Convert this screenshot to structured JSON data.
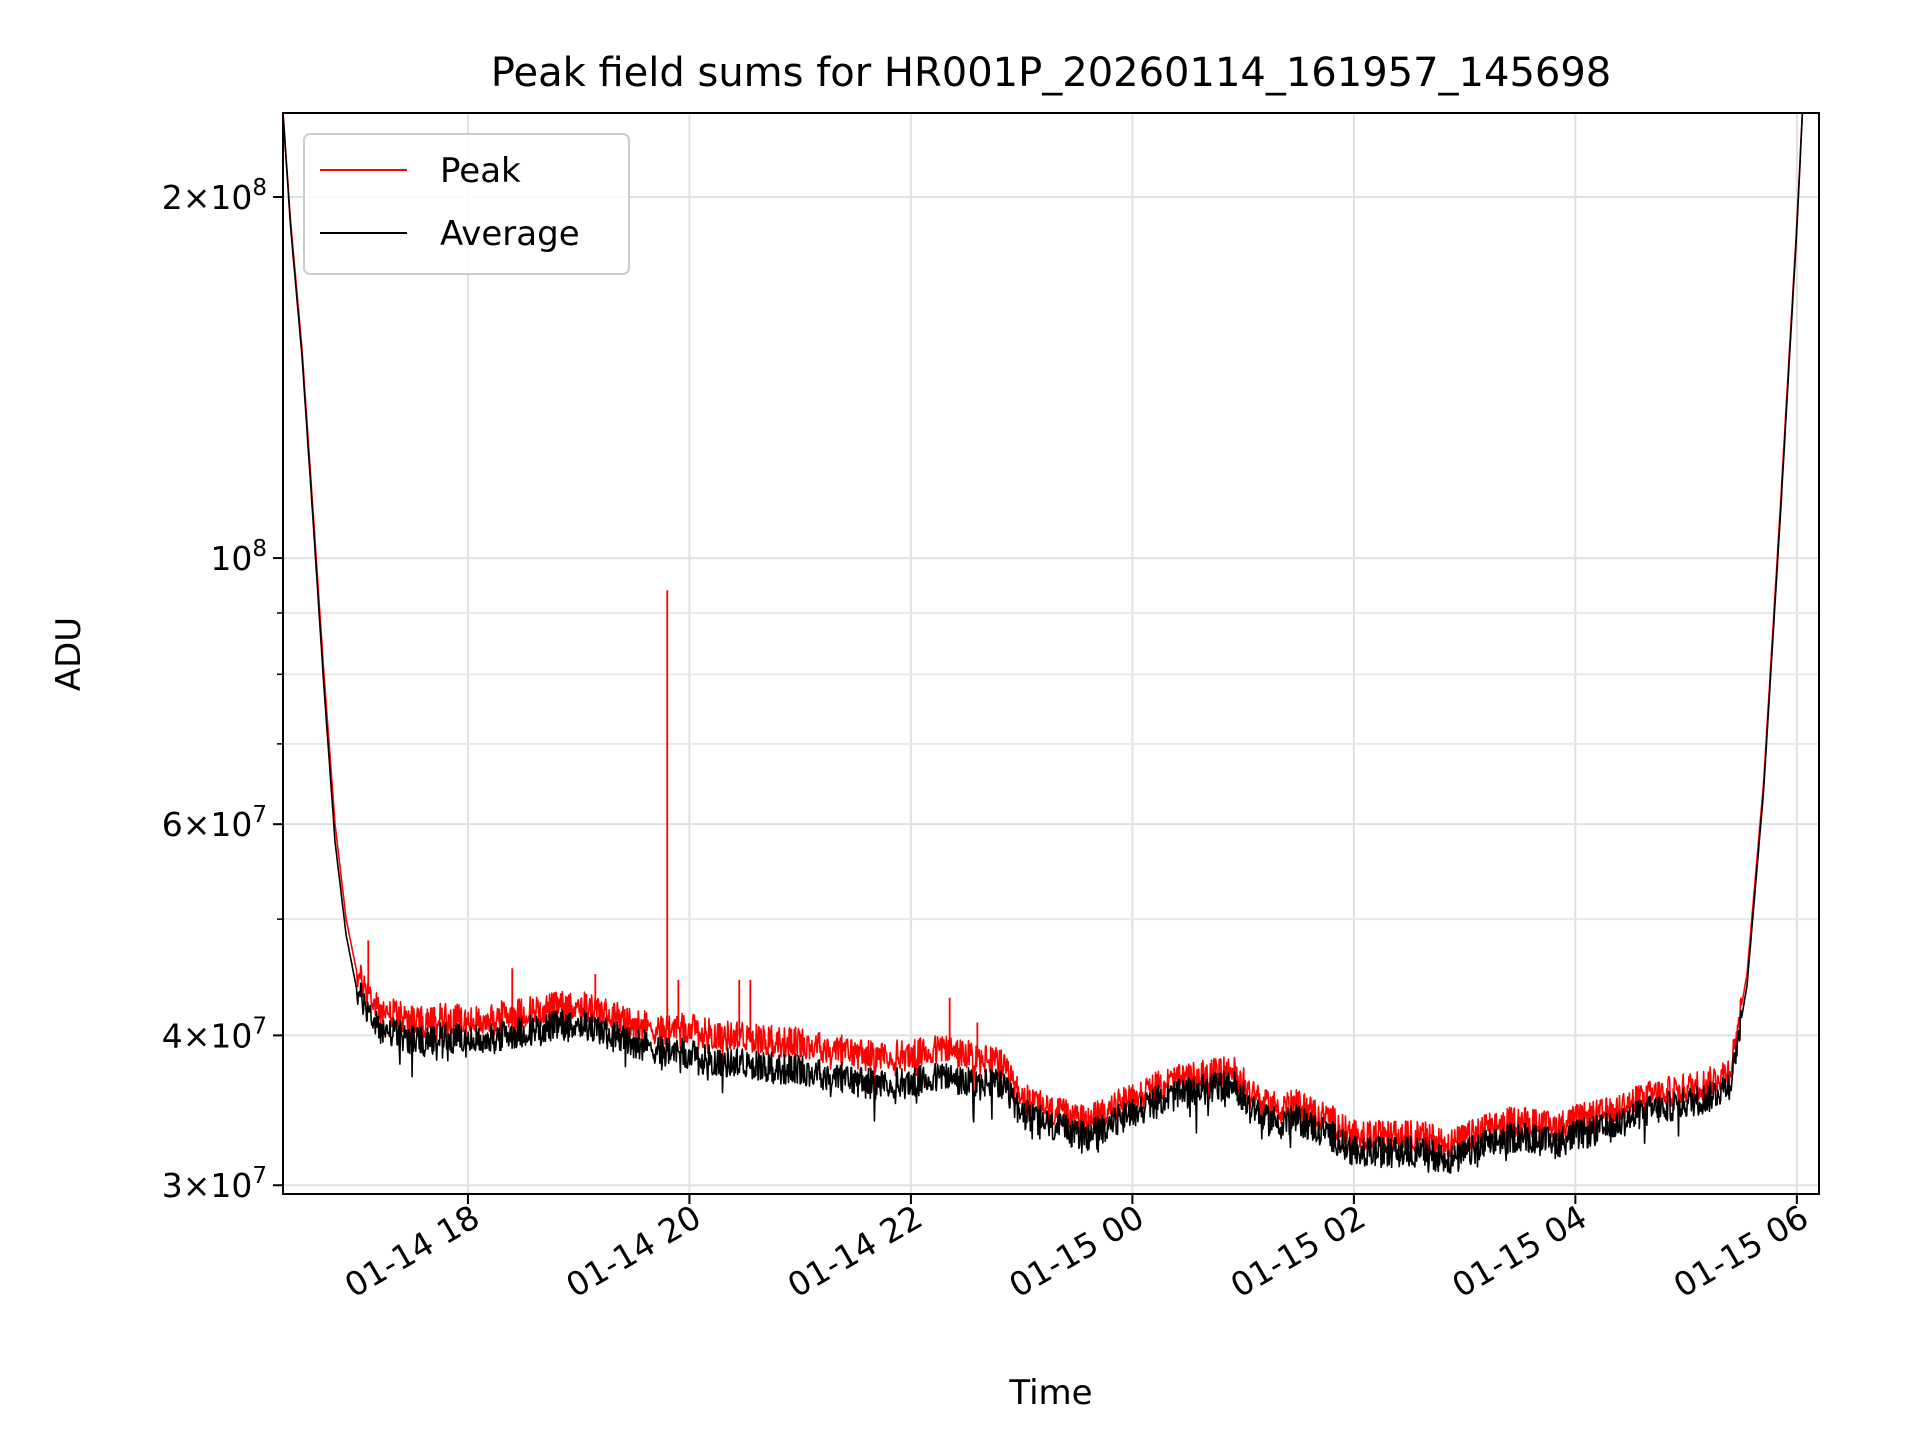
{
  "chart_data": {
    "type": "line",
    "title": "Peak field sums for HR001P_20260114_161957_145698",
    "xlabel": "Time",
    "ylabel": "ADU",
    "yscale": "log",
    "grid": true,
    "legend_position": "upper-left",
    "xlim_hours": [
      16.33,
      30.2
    ],
    "ylim": [
      29500000,
      235000000
    ],
    "x_ticks": [
      {
        "hours": 18,
        "label": "01-14 18"
      },
      {
        "hours": 20,
        "label": "01-14 20"
      },
      {
        "hours": 22,
        "label": "01-14 22"
      },
      {
        "hours": 24,
        "label": "01-15 00"
      },
      {
        "hours": 26,
        "label": "01-15 02"
      },
      {
        "hours": 28,
        "label": "01-15 04"
      },
      {
        "hours": 30,
        "label": "01-15 06"
      }
    ],
    "y_ticks": [
      {
        "value": 30000000,
        "mantissa": "3",
        "exponent": "7"
      },
      {
        "value": 40000000,
        "mantissa": "4",
        "exponent": "7"
      },
      {
        "value": 60000000,
        "mantissa": "6",
        "exponent": "7"
      },
      {
        "value": 100000000,
        "mantissa": "",
        "exponent": "8"
      },
      {
        "value": 200000000,
        "mantissa": "2",
        "exponent": "8"
      }
    ],
    "y_minor_ticks": [
      50000000,
      70000000,
      80000000,
      90000000
    ],
    "series": [
      {
        "name": "Peak",
        "color": "#ff0000",
        "x_hours": [
          16.33,
          16.4,
          16.5,
          16.6,
          16.7,
          16.8,
          16.9,
          17.0,
          17.2,
          17.4,
          17.6,
          17.8,
          18.0,
          18.3,
          18.6,
          19.0,
          19.3,
          19.5,
          19.7,
          20.0,
          20.3,
          20.5,
          20.8,
          21.0,
          21.3,
          21.6,
          22.0,
          22.3,
          22.5,
          22.8,
          23.0,
          23.3,
          23.6,
          24.0,
          24.3,
          24.6,
          24.9,
          25.2,
          25.5,
          25.8,
          26.0,
          26.3,
          26.6,
          26.9,
          27.2,
          27.5,
          27.8,
          28.0,
          28.3,
          28.6,
          28.9,
          29.2,
          29.4,
          29.55,
          29.7,
          29.85,
          30.0,
          30.05
        ],
        "values": [
          235000000,
          190000000,
          150000000,
          110000000,
          80000000,
          60000000,
          50000000,
          45000000,
          42000000,
          41500000,
          41000000,
          41500000,
          41000000,
          41500000,
          42000000,
          42500000,
          41500000,
          41000000,
          40500000,
          40500000,
          40000000,
          40000000,
          39500000,
          39500000,
          39000000,
          38500000,
          38500000,
          39000000,
          38500000,
          38000000,
          35500000,
          34500000,
          34000000,
          35500000,
          36500000,
          37000000,
          37500000,
          35000000,
          35000000,
          34000000,
          33000000,
          33000000,
          33000000,
          32500000,
          33500000,
          34000000,
          33500000,
          34000000,
          34500000,
          35500000,
          36000000,
          36500000,
          37500000,
          45000000,
          65000000,
          110000000,
          190000000,
          235000000
        ]
      },
      {
        "name": "Average",
        "color": "#000000",
        "x_hours": [
          16.33,
          16.4,
          16.5,
          16.6,
          16.7,
          16.8,
          16.9,
          17.0,
          17.2,
          17.4,
          17.6,
          17.8,
          18.0,
          18.3,
          18.6,
          19.0,
          19.3,
          19.5,
          19.7,
          20.0,
          20.3,
          20.5,
          20.8,
          21.0,
          21.3,
          21.6,
          22.0,
          22.3,
          22.5,
          22.8,
          23.0,
          23.3,
          23.6,
          24.0,
          24.3,
          24.6,
          24.9,
          25.2,
          25.5,
          25.8,
          26.0,
          26.3,
          26.6,
          26.9,
          27.2,
          27.5,
          27.8,
          28.0,
          28.3,
          28.6,
          28.9,
          29.2,
          29.4,
          29.55,
          29.7,
          29.85,
          30.0,
          30.05
        ],
        "values": [
          235000000,
          188000000,
          148000000,
          108000000,
          78000000,
          58000000,
          48500000,
          43500000,
          40500000,
          40000000,
          39500000,
          40000000,
          39500000,
          40000000,
          40500000,
          41000000,
          40000000,
          39500000,
          39000000,
          38500000,
          38000000,
          38000000,
          37500000,
          37500000,
          37000000,
          36500000,
          36500000,
          37000000,
          36500000,
          36500000,
          34500000,
          33500000,
          33000000,
          34500000,
          35500000,
          36000000,
          36500000,
          34000000,
          34000000,
          33000000,
          32000000,
          32000000,
          32000000,
          31500000,
          32500000,
          33000000,
          32500000,
          33000000,
          33500000,
          34500000,
          35000000,
          35500000,
          36500000,
          44000000,
          64000000,
          108000000,
          188000000,
          235000000
        ]
      }
    ],
    "spikes": [
      {
        "x_hours": 19.8,
        "value": 94000000
      },
      {
        "x_hours": 17.1,
        "value": 48000000
      },
      {
        "x_hours": 18.4,
        "value": 45500000
      },
      {
        "x_hours": 19.15,
        "value": 45000000
      },
      {
        "x_hours": 19.9,
        "value": 44500000
      },
      {
        "x_hours": 20.45,
        "value": 44500000
      },
      {
        "x_hours": 20.55,
        "value": 44500000
      },
      {
        "x_hours": 22.35,
        "value": 43000000
      },
      {
        "x_hours": 22.6,
        "value": 41000000
      }
    ]
  }
}
